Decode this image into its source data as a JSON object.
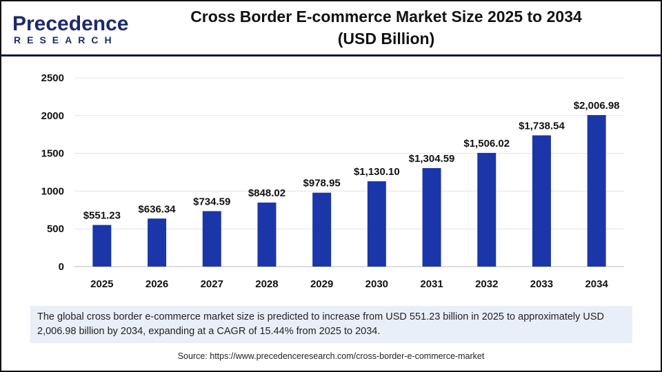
{
  "logo": {
    "text_main": "Precedence",
    "text_sub": "RESEARCH"
  },
  "title_line1": "Cross Border E-commerce Market Size 2025 to 2034",
  "title_line2": "(USD Billion)",
  "chart_data": {
    "type": "bar",
    "title": "Cross Border E-commerce Market Size 2025 to 2034 (USD Billion)",
    "categories": [
      "2025",
      "2026",
      "2027",
      "2028",
      "2029",
      "2030",
      "2031",
      "2032",
      "2033",
      "2034"
    ],
    "values": [
      551.23,
      636.34,
      734.59,
      848.02,
      978.95,
      1130.1,
      1304.59,
      1506.02,
      1738.54,
      2006.98
    ],
    "data_labels": [
      "$551.23",
      "$636.34",
      "$734.59",
      "$848.02",
      "$978.95",
      "$1,130.10",
      "$1,304.59",
      "$1,506.02",
      "$1,738.54",
      "$2,006.98"
    ],
    "ylim": [
      0,
      2500
    ],
    "yticks": [
      "0",
      "500",
      "1000",
      "1500",
      "2000",
      "2500"
    ],
    "grid": true,
    "bar_color": "#1a36a8"
  },
  "info": "The global cross border e-commerce market size is predicted to increase from USD 551.23 billion in 2025 to approximately USD 2,006.98 billion by 2034, expanding at a CAGR of 15.44% from 2025 to 2034.",
  "source": "Source: https://www.precedenceresearch.com/cross-border-e-commerce-market"
}
